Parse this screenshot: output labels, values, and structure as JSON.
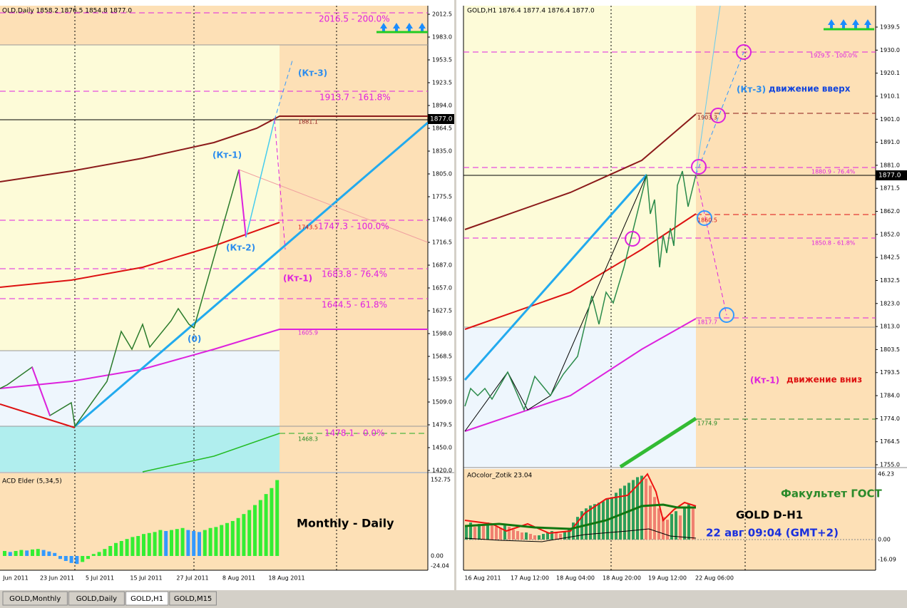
{
  "left": {
    "header": "OLD,Daily  1858.2 1876.5 1854.8 1877.0",
    "price_axis": [
      "2012.5",
      "1983.0",
      "1953.5",
      "1923.5",
      "1894.0",
      "1864.5",
      "1835.0",
      "1805.0",
      "1775.5",
      "1746.0",
      "1716.5",
      "1687.0",
      "1657.0",
      "1627.5",
      "1598.0",
      "1568.5",
      "1539.5",
      "1509.0",
      "1479.5",
      "1450.0",
      "1420.0"
    ],
    "current_price": "1877.0",
    "levels": [
      "2016.5 - 200.0%",
      "1913.7 - 161.8%",
      "1747.3 - 100.0%",
      "1683.8 - 76.4%",
      "1644.5 - 61.8%",
      "1478.1 - 0.0%"
    ],
    "ma_labels": [
      "1881.1",
      "1743.5",
      "1605.9",
      "1468.3"
    ],
    "points": [
      "(Кт-3)",
      "(Кт-1)",
      "(Кт-2)",
      "(0)",
      "(Кт-1)"
    ],
    "indicator": {
      "title": "ACD Elder (5,34,5)",
      "axis": [
        "152.75",
        "0.00",
        "-24.04"
      ],
      "up_color": "#33ee33",
      "down_color": "#3399ff",
      "bars": [
        10,
        8,
        10,
        12,
        11,
        13,
        14,
        12,
        9,
        6,
        -6,
        -10,
        -14,
        -16,
        -12,
        -6,
        4,
        8,
        14,
        20,
        26,
        30,
        34,
        38,
        40,
        44,
        46,
        48,
        52,
        50,
        52,
        54,
        56,
        52,
        50,
        48,
        52,
        56,
        58,
        62,
        66,
        70,
        76,
        84,
        92,
        102,
        112,
        124,
        136,
        152
      ]
    },
    "caption": "Monthly - Daily",
    "date_axis": [
      "Jun 2011",
      "23 Jun 2011",
      "5 Jul 2011",
      "15 Jul 2011",
      "27 Jul 2011",
      "8 Aug 2011",
      "18 Aug 2011"
    ]
  },
  "right": {
    "header": "GOLD,H1  1876.4 1877.4 1876.4 1877.0",
    "price_axis": [
      "1939.5",
      "1930.0",
      "1920.1",
      "1910.1",
      "1901.0",
      "1891.0",
      "1881.0",
      "1871.5",
      "1862.0",
      "1852.0",
      "1842.5",
      "1832.5",
      "1823.0",
      "1813.0",
      "1803.5",
      "1793.5",
      "1784.0",
      "1774.0",
      "1764.5",
      "1755.0"
    ],
    "current_price": "1877.0",
    "levels": [
      "1929.5 - 100.0%",
      "1903.3",
      "1880.9 - 76.4%",
      "1860.5",
      "1850.8 - 61.8%",
      "1817.7",
      "1774.9"
    ],
    "points": [
      "(Кт-3)",
      "движение вверх",
      "(Кт-1)",
      "движение вниз"
    ],
    "indicator": {
      "title": "AOcolor_Zotik 23.04",
      "axis": [
        "46.23",
        "0.00",
        "-16.09"
      ],
      "up_color": "#2e9e5a",
      "down_color": "#f08070",
      "bars": [
        10,
        12,
        9,
        11,
        10,
        12,
        11,
        9,
        8,
        10,
        9,
        7,
        6,
        5,
        5,
        4,
        3,
        3,
        4,
        5,
        6,
        5,
        4,
        6,
        8,
        12,
        16,
        20,
        22,
        24,
        25,
        26,
        27,
        29,
        30,
        33,
        36,
        38,
        40,
        42,
        44,
        45,
        43,
        38,
        30,
        22,
        16,
        14,
        18,
        20,
        17,
        22,
        25,
        23
      ]
    },
    "info": [
      "Факультет ГОСТ",
      "GOLD   D-H1",
      "22 авг 09:04 (GMT+2)"
    ],
    "date_axis": [
      "16 Aug 2011",
      "17 Aug 12:00",
      "18 Aug 04:00",
      "18 Aug 20:00",
      "19 Aug 12:00",
      "22 Aug 06:00"
    ]
  },
  "tabs": [
    "GOLD,Monthly",
    "GOLD,Daily",
    "GOLD,H1",
    "GOLD,M15"
  ]
}
